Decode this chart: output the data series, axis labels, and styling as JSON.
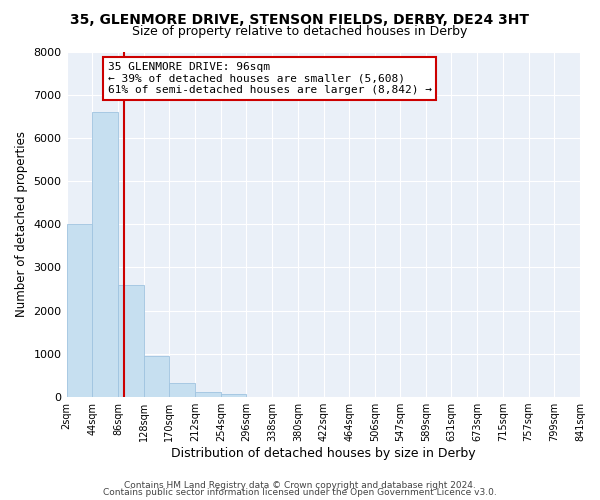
{
  "title": "35, GLENMORE DRIVE, STENSON FIELDS, DERBY, DE24 3HT",
  "subtitle": "Size of property relative to detached houses in Derby",
  "xlabel": "Distribution of detached houses by size in Derby",
  "ylabel": "Number of detached properties",
  "bar_color": "#c6dff0",
  "bar_edge_color": "#a0c4e0",
  "vline_x": 96,
  "vline_color": "#cc0000",
  "bin_edges": [
    2,
    44,
    86,
    128,
    170,
    212,
    254,
    296,
    338,
    380,
    422,
    464,
    506,
    547,
    589,
    631,
    673,
    715,
    757,
    799,
    841
  ],
  "bar_heights": [
    4000,
    6600,
    2600,
    950,
    330,
    120,
    60,
    0,
    0,
    0,
    0,
    0,
    0,
    0,
    0,
    0,
    0,
    0,
    0,
    0
  ],
  "ylim": [
    0,
    8000
  ],
  "yticks": [
    0,
    1000,
    2000,
    3000,
    4000,
    5000,
    6000,
    7000,
    8000
  ],
  "xtick_labels": [
    "2sqm",
    "44sqm",
    "86sqm",
    "128sqm",
    "170sqm",
    "212sqm",
    "254sqm",
    "296sqm",
    "338sqm",
    "380sqm",
    "422sqm",
    "464sqm",
    "506sqm",
    "547sqm",
    "589sqm",
    "631sqm",
    "673sqm",
    "715sqm",
    "757sqm",
    "799sqm",
    "841sqm"
  ],
  "annotation_box_text": "35 GLENMORE DRIVE: 96sqm\n← 39% of detached houses are smaller (5,608)\n61% of semi-detached houses are larger (8,842) →",
  "footer1": "Contains HM Land Registry data © Crown copyright and database right 2024.",
  "footer2": "Contains public sector information licensed under the Open Government Licence v3.0.",
  "fig_bg_color": "#ffffff",
  "plot_bg_color": "#eaf0f8",
  "grid_color": "#ffffff",
  "title_fontsize": 10,
  "subtitle_fontsize": 9,
  "xlabel_fontsize": 9,
  "ylabel_fontsize": 8.5,
  "ytick_fontsize": 8,
  "xtick_fontsize": 7,
  "footer_fontsize": 6.5,
  "annot_fontsize": 8
}
